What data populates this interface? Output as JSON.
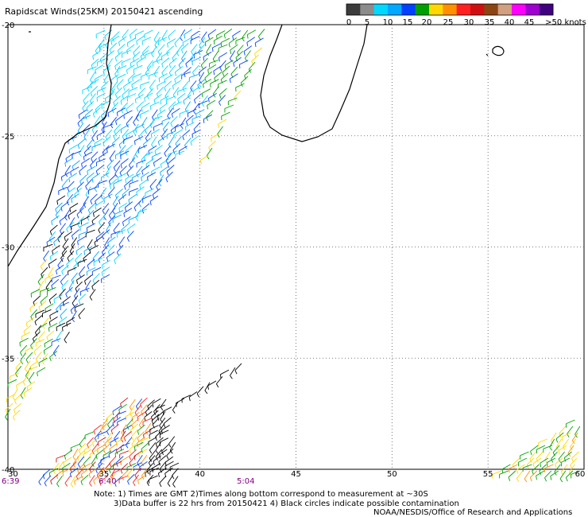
{
  "title": "Rapidscat Winds(25KM) 20150421 ascending",
  "legend": {
    "ticks": [
      "0",
      "5",
      "10",
      "15",
      "20",
      "25",
      "30",
      "35",
      "40",
      "45",
      ">50 knots"
    ],
    "colors": [
      "#3c3c3c",
      "#8c8c8c",
      "#00d8ff",
      "#00a8ff",
      "#0040ff",
      "#00a000",
      "#ffd800",
      "#ff9000",
      "#ff2020",
      "#d01010",
      "#8b4513",
      "#d0a080",
      "#ff00ff",
      "#a000d0",
      "#400080"
    ]
  },
  "axes": {
    "lat_labels": [
      "-20",
      "-25",
      "-30",
      "-35",
      "-40"
    ],
    "lon_labels": [
      "30",
      "35",
      "40",
      "45",
      "50",
      "55",
      "60"
    ]
  },
  "times": [
    "6:39",
    "6:40",
    "5:04"
  ],
  "notes": {
    "line1": "Note: 1) Times are GMT 2)Times along bottom correspond to measurement at ~30S",
    "line2": "3)Data buffer is 22 hrs from 20150421 4) Black circles indicate possible contamination",
    "credit": "NOAA/NESDIS/Office of Research and Applications"
  },
  "colors": {
    "grid": "#555555",
    "coast": "#000000",
    "time_label": "#800080"
  }
}
